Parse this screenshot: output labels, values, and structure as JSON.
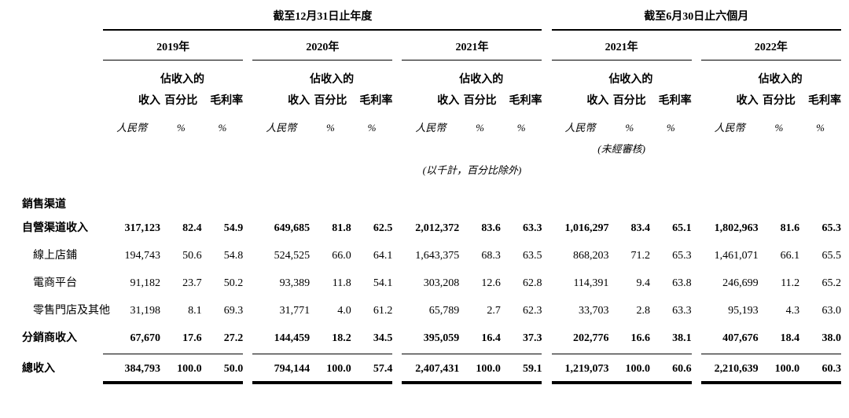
{
  "table": {
    "period_headers": [
      {
        "label": "截至12月31日止年度"
      },
      {
        "label": "截至6月30日止六個月"
      }
    ],
    "year_headers": [
      "2019年",
      "2020年",
      "2021年",
      "2021年",
      "2022年"
    ],
    "col_headers": {
      "income": "收入",
      "pct_line1": "佔收入的",
      "pct_line2": "百分比",
      "margin": "毛利率"
    },
    "units": {
      "currency": "人民幣",
      "percent": "%"
    },
    "unaudited_note": "(未經審核)",
    "scale_note": "(以千計，百分比除外)",
    "section_header": "銷售渠道",
    "rows": [
      {
        "label": "自營渠道收入",
        "bold": true,
        "indent": false,
        "values": [
          "317,123",
          "82.4",
          "54.9",
          "649,685",
          "81.8",
          "62.5",
          "2,012,372",
          "83.6",
          "63.3",
          "1,016,297",
          "83.4",
          "65.1",
          "1,802,963",
          "81.6",
          "65.3"
        ]
      },
      {
        "label": "線上店鋪",
        "bold": false,
        "indent": true,
        "values": [
          "194,743",
          "50.6",
          "54.8",
          "524,525",
          "66.0",
          "64.1",
          "1,643,375",
          "68.3",
          "63.5",
          "868,203",
          "71.2",
          "65.3",
          "1,461,071",
          "66.1",
          "65.5"
        ]
      },
      {
        "label": "電商平台",
        "bold": false,
        "indent": true,
        "values": [
          "91,182",
          "23.7",
          "50.2",
          "93,389",
          "11.8",
          "54.1",
          "303,208",
          "12.6",
          "62.8",
          "114,391",
          "9.4",
          "63.8",
          "246,699",
          "11.2",
          "65.2"
        ]
      },
      {
        "label": "零售門店及其他",
        "bold": false,
        "indent": true,
        "values": [
          "31,198",
          "8.1",
          "69.3",
          "31,771",
          "4.0",
          "61.2",
          "65,789",
          "2.7",
          "62.3",
          "33,703",
          "2.8",
          "63.3",
          "95,193",
          "4.3",
          "63.0"
        ]
      },
      {
        "label": "分銷商收入",
        "bold": true,
        "indent": false,
        "values": [
          "67,670",
          "17.6",
          "27.2",
          "144,459",
          "18.2",
          "34.5",
          "395,059",
          "16.4",
          "37.3",
          "202,776",
          "16.6",
          "38.1",
          "407,676",
          "18.4",
          "38.0"
        ]
      }
    ],
    "total_row": {
      "label": "總收入",
      "bold": true,
      "indent": false,
      "values": [
        "384,793",
        "100.0",
        "50.0",
        "794,144",
        "100.0",
        "57.4",
        "2,407,431",
        "100.0",
        "59.1",
        "1,219,073",
        "100.0",
        "60.6",
        "2,210,639",
        "100.0",
        "60.3"
      ]
    }
  }
}
